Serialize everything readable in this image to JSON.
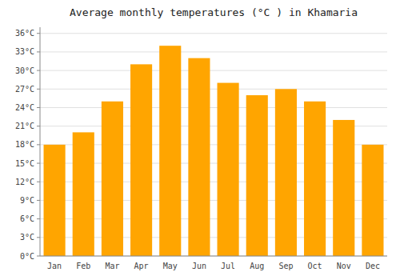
{
  "chart_data": {
    "type": "bar",
    "title": "Average monthly temperatures (°C ) in Khamaria",
    "categories": [
      "Jan",
      "Feb",
      "Mar",
      "Apr",
      "May",
      "Jun",
      "Jul",
      "Aug",
      "Sep",
      "Oct",
      "Nov",
      "Dec"
    ],
    "values": [
      18,
      20,
      25,
      31,
      34,
      32,
      28,
      26,
      27,
      25,
      22,
      18
    ],
    "color": "#FFA500",
    "ylim": [
      0,
      37
    ],
    "yticks": [
      {
        "value": 0,
        "label": "0°C"
      },
      {
        "value": 3,
        "label": "3°C"
      },
      {
        "value": 6,
        "label": "6°C"
      },
      {
        "value": 9,
        "label": "9°C"
      },
      {
        "value": 12,
        "label": "12°C"
      },
      {
        "value": 15,
        "label": "15°C"
      },
      {
        "value": 18,
        "label": "18°C"
      },
      {
        "value": 21,
        "label": "21°C"
      },
      {
        "value": 24,
        "label": "24°C"
      },
      {
        "value": 27,
        "label": "27°C"
      },
      {
        "value": 30,
        "label": "30°C"
      },
      {
        "value": 33,
        "label": "33°C"
      },
      {
        "value": 36,
        "label": "36°C"
      }
    ],
    "grid": true
  }
}
